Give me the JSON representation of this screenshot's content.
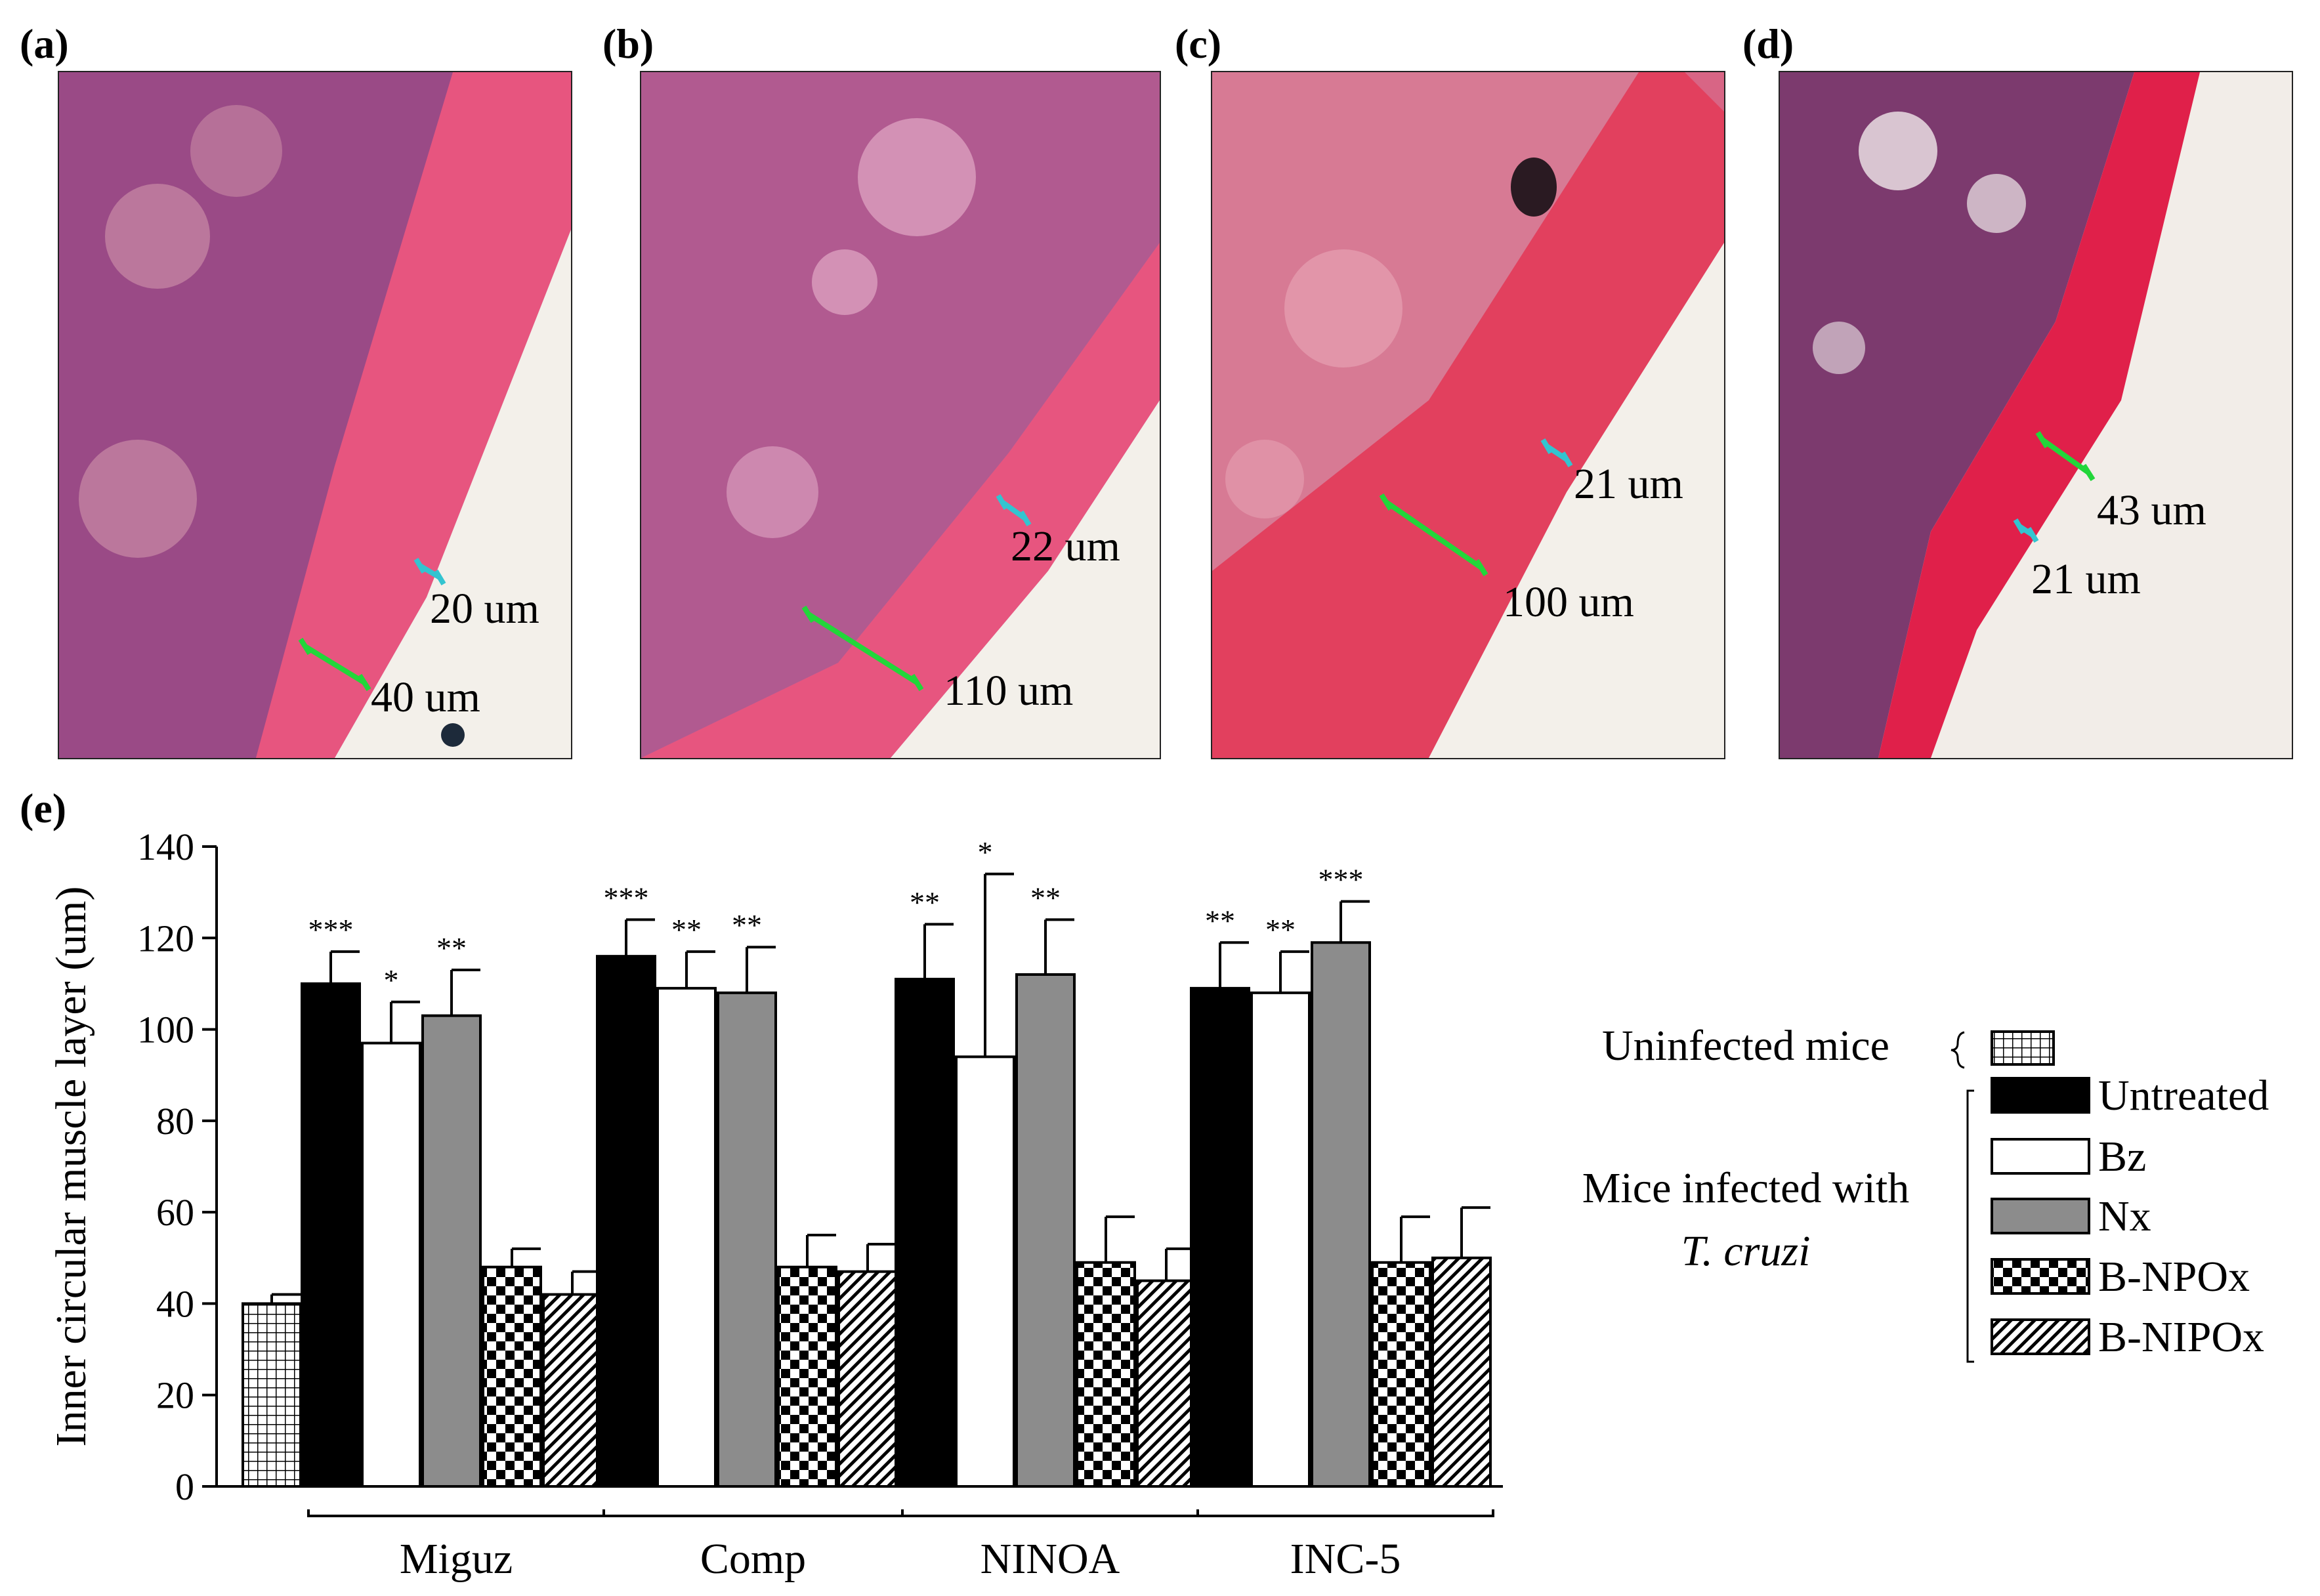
{
  "panels": {
    "a": {
      "label": "(a)",
      "measures": [
        "20 um",
        "40 um"
      ]
    },
    "b": {
      "label": "(b)",
      "measures": [
        "22 um",
        "110 um"
      ]
    },
    "c": {
      "label": "(c)",
      "measures": [
        "21 um",
        "100 um"
      ]
    },
    "d": {
      "label": "(d)",
      "measures": [
        "43 um",
        "21 um"
      ]
    },
    "e": {
      "label": "(e)"
    }
  },
  "colors": {
    "tissue_pink": "#e8457a",
    "muscle_red": "#e0204a",
    "nuclei": "#5a1f5c",
    "measure_green": "#22d63a",
    "measure_cyan": "#33c4d0"
  },
  "legend": {
    "uninfected": "Uninfected mice",
    "infected_line1": "Mice infected with",
    "infected_line2": "T. cruzi",
    "entries": [
      "Untreated",
      "Bz",
      "Nx",
      "B-NPOx",
      "B-NIPOx"
    ]
  },
  "chart_data": {
    "type": "bar",
    "ylabel": "Inner circular muscle layer (um)",
    "ylim": [
      0,
      140
    ],
    "yticks": [
      "0",
      "20",
      "40",
      "60",
      "80",
      "100",
      "120",
      "140"
    ],
    "control": {
      "name": "Uninfected mice",
      "value": 40,
      "err": 2
    },
    "categories": [
      "Miguz",
      "Comp",
      "NINOA",
      "INC-5"
    ],
    "series": [
      {
        "name": "Untreated",
        "values": [
          110,
          116,
          111,
          109
        ],
        "err": [
          7,
          8,
          12,
          10
        ],
        "sig": [
          "***",
          "***",
          "**",
          "**"
        ]
      },
      {
        "name": "Bz",
        "values": [
          97,
          109,
          94,
          108
        ],
        "err": [
          9,
          8,
          40,
          9
        ],
        "sig": [
          "*",
          "**",
          "*",
          "**"
        ]
      },
      {
        "name": "Nx",
        "values": [
          103,
          108,
          112,
          119
        ],
        "err": [
          10,
          10,
          12,
          9
        ],
        "sig": [
          "**",
          "**",
          "**",
          "***"
        ]
      },
      {
        "name": "B-NPOx",
        "values": [
          48,
          48,
          49,
          49
        ],
        "err": [
          4,
          7,
          10,
          10
        ],
        "sig": [
          "",
          "",
          "",
          ""
        ]
      },
      {
        "name": "B-NIPOx",
        "values": [
          42,
          47,
          45,
          50
        ],
        "err": [
          5,
          6,
          7,
          11
        ],
        "sig": [
          "",
          "",
          "",
          ""
        ]
      }
    ]
  }
}
